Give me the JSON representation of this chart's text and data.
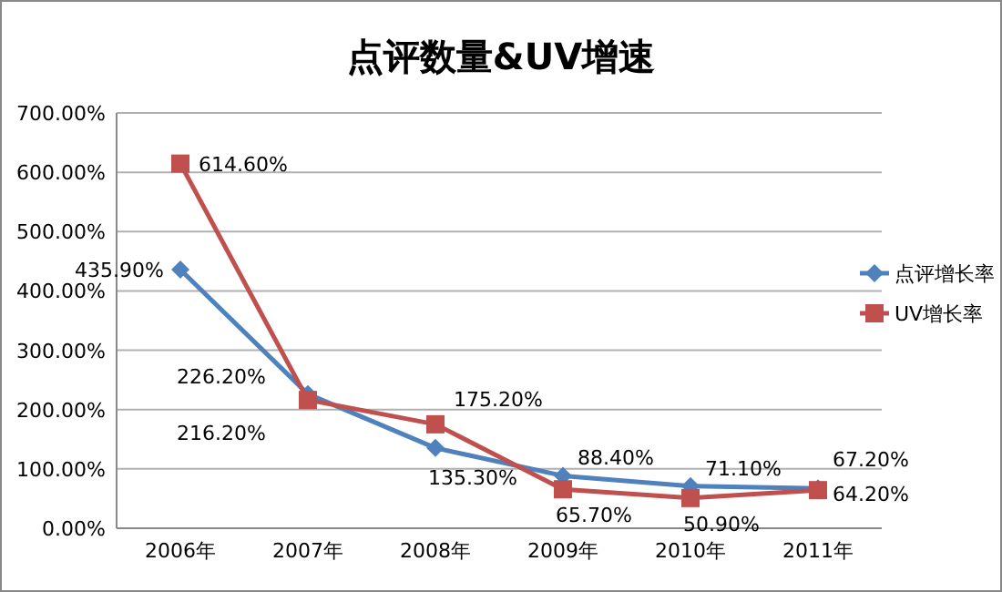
{
  "chart_data": {
    "type": "line",
    "title": "点评数量&UV增速",
    "categories": [
      "2006年",
      "2007年",
      "2008年",
      "2009年",
      "2010年",
      "2011年"
    ],
    "series": [
      {
        "name": "点评增长率",
        "color": "#4f81bd",
        "marker": "diamond",
        "values": [
          435.9,
          226.2,
          135.3,
          88.4,
          71.1,
          67.2
        ],
        "value_labels": [
          "435.90%",
          "226.20%",
          "135.30%",
          "88.40%",
          "71.10%",
          "67.20%"
        ]
      },
      {
        "name": "UV增长率",
        "color": "#c0504d",
        "marker": "square",
        "values": [
          614.6,
          216.2,
          175.2,
          65.7,
          50.9,
          64.2
        ],
        "value_labels": [
          "614.60%",
          "216.20%",
          "175.20%",
          "65.70%",
          "50.90%",
          "64.20%"
        ]
      }
    ],
    "ylim": [
      0,
      700
    ],
    "yticks": [
      {
        "value": 0,
        "label": "0.00%"
      },
      {
        "value": 100,
        "label": "100.00%"
      },
      {
        "value": 200,
        "label": "200.00%"
      },
      {
        "value": 300,
        "label": "300.00%"
      },
      {
        "value": 400,
        "label": "400.00%"
      },
      {
        "value": 500,
        "label": "500.00%"
      },
      {
        "value": 600,
        "label": "600.00%"
      },
      {
        "value": 700,
        "label": "700.00%"
      }
    ],
    "grid": "y",
    "legend": "right"
  }
}
